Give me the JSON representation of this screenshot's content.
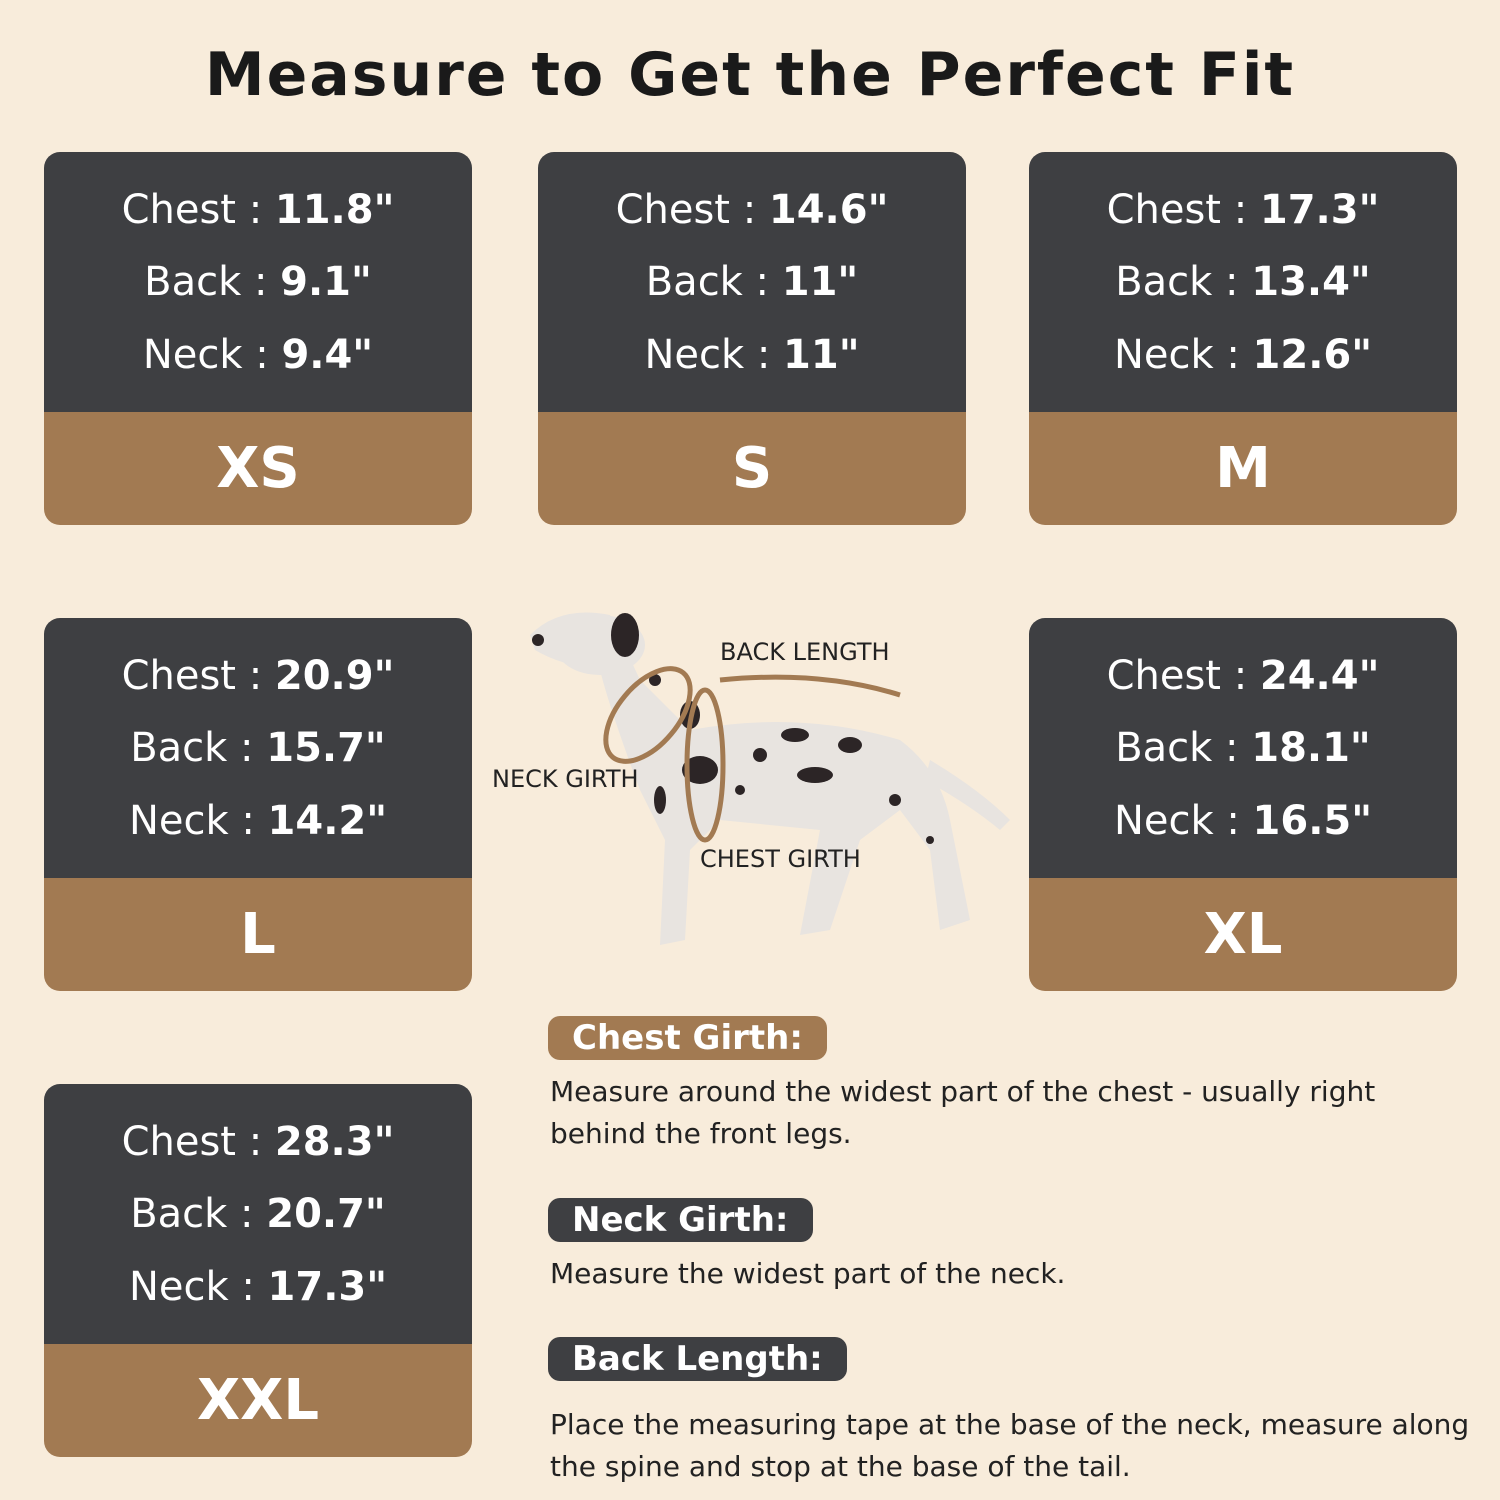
{
  "title": "Measure to Get the Perfect Fit",
  "labels": {
    "chest": "Chest",
    "back": "Back",
    "neck": "Neck"
  },
  "sizes": [
    {
      "size": "XS",
      "chest": "11.8\"",
      "back": "9.1\"",
      "neck": "9.4\""
    },
    {
      "size": "S",
      "chest": "14.6\"",
      "back": "11\"",
      "neck": "11\""
    },
    {
      "size": "M",
      "chest": "17.3\"",
      "back": "13.4\"",
      "neck": "12.6\""
    },
    {
      "size": "L",
      "chest": "20.9\"",
      "back": "15.7\"",
      "neck": "14.2\""
    },
    {
      "size": "XL",
      "chest": "24.4\"",
      "back": "18.1\"",
      "neck": "16.5\""
    },
    {
      "size": "XXL",
      "chest": "28.3\"",
      "back": "20.7\"",
      "neck": "17.3\""
    }
  ],
  "diagram": {
    "back_length": "BACK LENGTH",
    "neck_girth": "NECK GIRTH",
    "chest_girth": "CHEST GIRTH"
  },
  "guide": [
    {
      "heading": "Chest Girth:",
      "text": "Measure around the widest part of the chest - usually right behind the front legs.",
      "color": "#a27a52"
    },
    {
      "heading": "Neck Girth:",
      "text": "Measure the widest part of the neck.",
      "color": "#3e3f42"
    },
    {
      "heading": "Back Length:",
      "text": "Place the measuring tape at the base of the neck, measure along the spine and stop at the base of the tail.",
      "color": "#3e3f42"
    }
  ],
  "colors": {
    "background": "#f8ecdb",
    "card_dark": "#3e3f42",
    "card_brown": "#a27a52"
  }
}
